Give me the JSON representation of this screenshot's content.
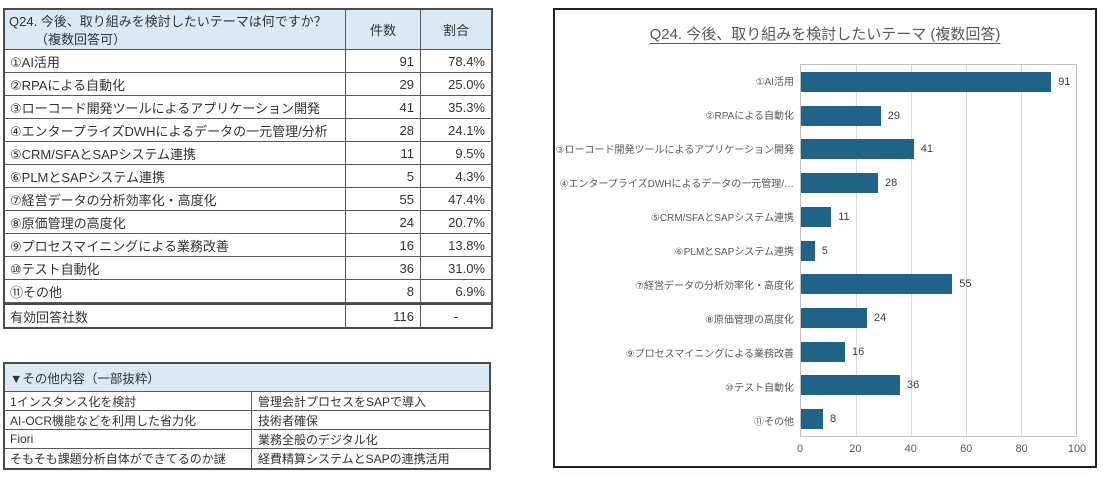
{
  "table1": {
    "header": {
      "question_line1": "Q24. 今後、取り組みを検討したいテーマは何ですか？",
      "question_line2": "（複数回答可）",
      "col_count": "件数",
      "col_ratio": "割合"
    },
    "rows": [
      {
        "label": "①AI活用",
        "count": "91",
        "ratio": "78.4%"
      },
      {
        "label": "②RPAによる自動化",
        "count": "29",
        "ratio": "25.0%"
      },
      {
        "label": "③ローコード開発ツールによるアプリケーション開発",
        "count": "41",
        "ratio": "35.3%"
      },
      {
        "label": "④エンタープライズDWHによるデータの一元管理/分析",
        "count": "28",
        "ratio": "24.1%"
      },
      {
        "label": "⑤CRM/SFAとSAPシステム連携",
        "count": "11",
        "ratio": "9.5%"
      },
      {
        "label": "⑥PLMとSAPシステム連携",
        "count": "5",
        "ratio": "4.3%"
      },
      {
        "label": "⑦経営データの分析効率化・高度化",
        "count": "55",
        "ratio": "47.4%"
      },
      {
        "label": "⑧原価管理の高度化",
        "count": "24",
        "ratio": "20.7%"
      },
      {
        "label": "⑨プロセスマイニングによる業務改善",
        "count": "16",
        "ratio": "13.8%"
      },
      {
        "label": "⑩テスト自動化",
        "count": "36",
        "ratio": "31.0%"
      },
      {
        "label": "⑪その他",
        "count": "8",
        "ratio": "6.9%"
      }
    ],
    "total": {
      "label": "有効回答社数",
      "count": "116",
      "ratio": "-"
    }
  },
  "table2": {
    "header": "▼その他内容（一部抜粋）",
    "rows": [
      {
        "left": "1インスタンス化を検討",
        "right": "管理会計プロセスをSAPで導入"
      },
      {
        "left": "AI-OCR機能などを利用した省力化",
        "right": "技術者確保"
      },
      {
        "left": "Fiori",
        "right": "業務全般のデジタル化"
      },
      {
        "left": "そもそも課題分析自体ができてるのか謎",
        "right": "経費精算システムとSAPの連携活用"
      }
    ]
  },
  "chart_data": {
    "type": "bar",
    "orientation": "horizontal",
    "title": "Q24. 今後、取り組みを検討したいテーマ (複数回答)",
    "categories": [
      "①AI活用",
      "②RPAによる自動化",
      "③ローコード開発ツールによるアプリケーション開発",
      "④エンタープライズDWHによるデータの一元管理/…",
      "⑤CRM/SFAとSAPシステム連携",
      "⑥PLMとSAPシステム連携",
      "⑦経営データの分析効率化・高度化",
      "⑧原価管理の高度化",
      "⑨プロセスマイニングによる業務改善",
      "⑩テスト自動化",
      "⑪その他"
    ],
    "values": [
      91,
      29,
      41,
      28,
      11,
      5,
      55,
      24,
      16,
      36,
      8
    ],
    "xlabel": "",
    "ylabel": "",
    "xlim": [
      0,
      100
    ],
    "x_ticks": [
      "0",
      "20",
      "40",
      "60",
      "80",
      "100"
    ],
    "grid": true,
    "legend": "none",
    "bar_color": "#1f6386"
  },
  "colors": {
    "header_bg": "#dae9f4",
    "bar": "#1f6386",
    "panel_border": "#17242c",
    "table_border": "#595959",
    "gridline": "#d9d9d9",
    "text": "#333333",
    "muted_text": "#595959"
  }
}
